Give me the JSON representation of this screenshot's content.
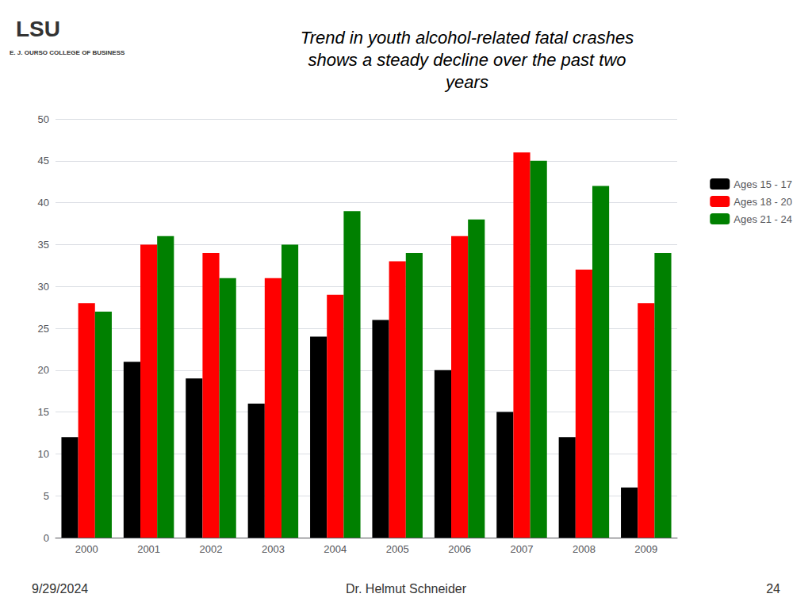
{
  "chart_data": {
    "type": "bar",
    "title": "Trend in youth alcohol-related fatal crashes\nshows a steady decline over the past two\nyears",
    "annotations": [
      "LSU",
      "E. J. OURSO COLLEGE OF BUSINESS",
      "9/29/2024",
      "Dr. Helmut Schneider",
      "24"
    ],
    "categories": [
      "2000",
      "2001",
      "2002",
      "2003",
      "2004",
      "2005",
      "2006",
      "2007",
      "2008",
      "2009"
    ],
    "series": [
      {
        "name": "Ages 15 - 17",
        "color": "#000000",
        "values": [
          12,
          21,
          19,
          16,
          24,
          26,
          20,
          15,
          12,
          6
        ]
      },
      {
        "name": "Ages 18 - 20",
        "color": "#ff0000",
        "values": [
          28,
          35,
          34,
          31,
          29,
          33,
          36,
          46,
          32,
          28
        ]
      },
      {
        "name": "Ages 21 - 24",
        "color": "#008000",
        "values": [
          27,
          36,
          31,
          35,
          39,
          34,
          38,
          45,
          42,
          34
        ]
      }
    ],
    "ylim": [
      0,
      50
    ],
    "yticks": [
      0,
      5,
      10,
      15,
      20,
      25,
      30,
      35,
      40,
      45,
      50
    ],
    "grid": true,
    "legend": "right"
  }
}
